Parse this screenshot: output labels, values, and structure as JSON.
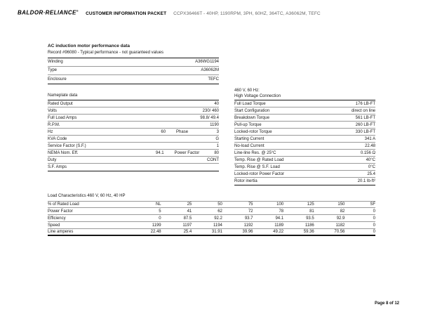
{
  "header": {
    "logo": "BALDOR·RELIANCE",
    "logo_reg": "®",
    "packet_title": "CUSTOMER INFORMATION PACKET",
    "product_line": "CCPX36466T - 40HP, 1190RPM, 3PH, 60HZ, 364TC, A36062M, TEFC"
  },
  "performance": {
    "title": "AC induction motor performance data",
    "subtitle": "Record #96080 - Typical performance - not guaranteed values",
    "rows": [
      {
        "label": "Winding",
        "value": "A36WG1194"
      },
      {
        "label": "Type",
        "value": "A36062M"
      },
      {
        "label": "Enclosure",
        "value": "TEFC"
      }
    ]
  },
  "nameplate": {
    "title": "Nameplate data",
    "rows": [
      {
        "label": "Rated Output",
        "value": "40"
      },
      {
        "label": "Volts",
        "value": "230/ 460"
      },
      {
        "label": "Full Load Amps",
        "value": "98.8/ 49.4"
      },
      {
        "label": "R.P.M.",
        "value": "1190"
      },
      {
        "label": "Hz",
        "mid": "60",
        "label2": "Phase",
        "value": "3"
      },
      {
        "label": "KVA Code",
        "value": "G"
      },
      {
        "label": "Service Factor (S.F.)",
        "value": "1"
      },
      {
        "label": "NEMA Nom. Eff.",
        "mid": "94.1",
        "label2": "Power Factor",
        "value": "80"
      },
      {
        "label": "Duty",
        "value": "CONT"
      },
      {
        "label": "S.F. Amps",
        "value": ""
      }
    ]
  },
  "hv": {
    "title_line1": "460 V, 60 Hz:",
    "title_line2": "High Voltage Connection",
    "rows": [
      {
        "label": "Full Load Torque",
        "value": "176 LB-FT"
      },
      {
        "label": "Start Configuration",
        "value": "direct on line"
      },
      {
        "label": "Breakdown Torque",
        "value": "561 LB-FT"
      },
      {
        "label": "Pull-up Torque",
        "value": "260 LB-FT"
      },
      {
        "label": "Locked-rotor Torque",
        "value": "330 LB-FT"
      },
      {
        "label": "Starting Current",
        "value": "341 A"
      },
      {
        "label": "No-load Current",
        "value": "22.48"
      },
      {
        "label": "Line-line Res. @ 25°C",
        "value": "0.156 Ω"
      },
      {
        "label": "Temp. Rise @ Rated Load",
        "value": "40°C"
      },
      {
        "label": "Temp. Rise @ S.F. Load",
        "value": "0°C"
      },
      {
        "label": "Locked-rotor Power Factor",
        "value": "25.4"
      },
      {
        "label": "Rotor inertia",
        "value": "20.1 lb-ft²"
      }
    ]
  },
  "load": {
    "title": "Load Characteristics 460 V, 60 Hz, 40 HP",
    "columns": [
      "% of Rated Load",
      "NL",
      "25",
      "50",
      "75",
      "100",
      "125",
      "150",
      "SF"
    ],
    "rows": [
      [
        "Power Factor",
        "5",
        "41",
        "62",
        "72",
        "78",
        "81",
        "82",
        "0"
      ],
      [
        "Efficiency",
        "0",
        "87.5",
        "92.2",
        "93.7",
        "94.1",
        "93.5",
        "92.9",
        "0"
      ],
      [
        "Speed",
        "1199",
        "1197",
        "1194",
        "1192",
        "1189",
        "1186",
        "1182",
        "0"
      ],
      [
        "Line amperes",
        "22.48",
        "25.4",
        "31.91",
        "39.96",
        "49.22",
        "59.36",
        "70.56",
        "0"
      ]
    ]
  },
  "footer": {
    "page_label": "Page 8 of 12"
  }
}
